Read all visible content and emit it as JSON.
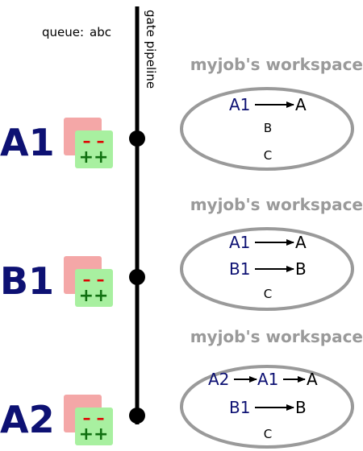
{
  "queue": {
    "label": "queue:",
    "name": "abc"
  },
  "pipeline": {
    "label": "gate pipeline"
  },
  "colors": {
    "change_blue": "#0d1173",
    "workspace_grey": "#9a9a9a",
    "removed_red": "#f4a7a7",
    "added_green": "#a8f0a0",
    "minus_red": "#e00000",
    "plus_green": "#107010"
  },
  "icons": {
    "diff": "diff-icon",
    "minus": "minus-signs",
    "plus": "plus-signs"
  },
  "stages": [
    {
      "change": "A1",
      "workspace_title": "myjob's workspace",
      "rows": [
        {
          "chain": [
            "A1",
            "A"
          ]
        },
        {
          "plain": "B"
        },
        {
          "plain": "C"
        }
      ]
    },
    {
      "change": "B1",
      "workspace_title": "myjob's workspace",
      "rows": [
        {
          "chain": [
            "A1",
            "A"
          ]
        },
        {
          "chain": [
            "B1",
            "B"
          ]
        },
        {
          "plain": "C"
        }
      ]
    },
    {
      "change": "A2",
      "workspace_title": "myjob's workspace",
      "rows": [
        {
          "chain": [
            "A2",
            "A1",
            "A"
          ]
        },
        {
          "chain": [
            "B1",
            "B"
          ]
        },
        {
          "plain": "C"
        }
      ]
    }
  ]
}
